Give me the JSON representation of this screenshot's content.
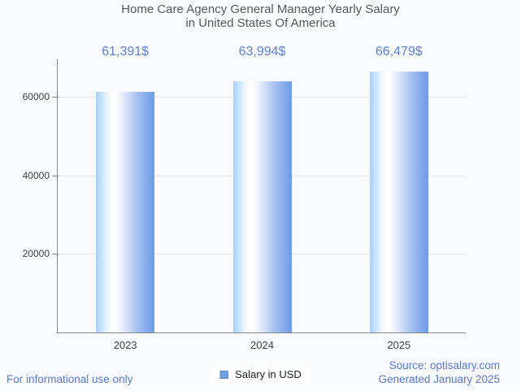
{
  "title": {
    "line1": "Home Care Agency General Manager Yearly Salary",
    "line2": "in United States Of America"
  },
  "chart_data": {
    "type": "bar",
    "title": "Home Care Agency General Manager Yearly Salary in United States Of America",
    "categories": [
      "2023",
      "2024",
      "2025"
    ],
    "series": [
      {
        "name": "Salary in USD",
        "values": [
          61391,
          63994,
          66479
        ]
      }
    ],
    "value_labels": [
      "61,391$",
      "63,994$",
      "66,479$"
    ],
    "xlabel": "",
    "ylabel": "",
    "y_ticks": [
      {
        "value": 20000,
        "label": "20000"
      },
      {
        "value": 40000,
        "label": "40000"
      },
      {
        "value": 60000,
        "label": "60000"
      }
    ],
    "ylim": [
      0,
      69600
    ],
    "grid": true,
    "legend_position": "bottom"
  },
  "legend": {
    "label": "Salary in USD"
  },
  "footer": {
    "left_note": "For informational use only",
    "source_line1": "Source: optisalary.com",
    "source_line2": "Generated January 2025"
  },
  "colors": {
    "background": "#fafbfe",
    "title_text": "#58595b",
    "value_label_text": "#5b80d8",
    "tick_label_text": "#3f4245",
    "axis_line": "#85878a",
    "gridline": "#e4e6ea",
    "footer_link_text": "#5679d4",
    "legend_text": "#202124",
    "legend_background": "#ffffff",
    "legend_swatch_fill": "#73a1e6",
    "legend_swatch_border": "#4d82c4",
    "bar_gradient_stops": [
      "#a3d1fa 0%",
      "#eef6fe 20%",
      "#ffffff 28%",
      "#ffffff 34%",
      "#dce6f8 50%",
      "#a9c2f1 70%",
      "#6d9aea 100%"
    ]
  }
}
